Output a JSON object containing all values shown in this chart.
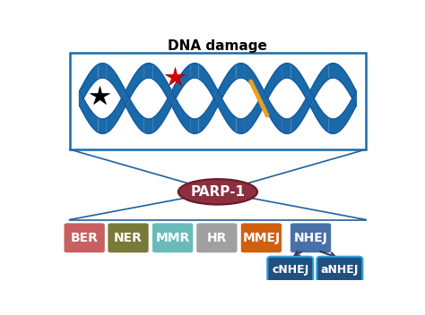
{
  "title": "DNA damage",
  "parp1_label": "PARP-1",
  "parp1_color": "#8B3040",
  "parp1_text_color": "#ffffff",
  "boxes": [
    {
      "label": "BER",
      "bg": "#c86060",
      "tc": "#ffffff"
    },
    {
      "label": "NER",
      "bg": "#7a7a38",
      "tc": "#ffffff"
    },
    {
      "label": "MMR",
      "bg": "#6ababa",
      "tc": "#ffffff"
    },
    {
      "label": "HR",
      "bg": "#a0a0a0",
      "tc": "#ffffff"
    },
    {
      "label": "MMEJ",
      "bg": "#d06010",
      "tc": "#ffffff"
    },
    {
      "label": "NHEJ",
      "bg": "#4a70a8",
      "tc": "#ffffff"
    }
  ],
  "cnhej_color": "#1a80c0",
  "anhej_color": "#1a80c0",
  "cnhej_bg": "#205080",
  "anhej_bg": "#205080",
  "dna_color": "#1a6aaa",
  "dna_edge_color": "#1555a0",
  "box_edge_color": "#2060a0"
}
